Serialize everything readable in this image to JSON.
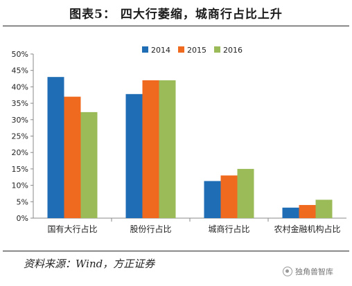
{
  "header": {
    "title": "图表5：  四大行萎缩，城商行占比上升"
  },
  "footer": {
    "source": "资料来源：Wind，方正证券",
    "watermark_left": "",
    "watermark_right": "独角兽智库"
  },
  "chart_data": {
    "type": "bar",
    "title": "图表5：  四大行萎缩，城商行占比上升",
    "categories": [
      "国有大行占比",
      "股份行占比",
      "城商行占比",
      "农村金融机构占比"
    ],
    "series": [
      {
        "name": "2014",
        "values": [
          43,
          37.8,
          11.3,
          3.2
        ],
        "color": "#1f6db5"
      },
      {
        "name": "2015",
        "values": [
          37,
          42,
          13,
          4
        ],
        "color": "#ef6a1f"
      },
      {
        "name": "2016",
        "values": [
          32.3,
          42,
          15,
          5.6
        ],
        "color": "#9bbb59"
      }
    ],
    "y_ticks": [
      "0%",
      "5%",
      "10%",
      "15%",
      "20%",
      "25%",
      "30%",
      "35%",
      "40%",
      "45%",
      "50%"
    ],
    "ylim": [
      0,
      50
    ],
    "xlabel": "",
    "ylabel": "",
    "legend_position": "top-right",
    "grid": false
  }
}
